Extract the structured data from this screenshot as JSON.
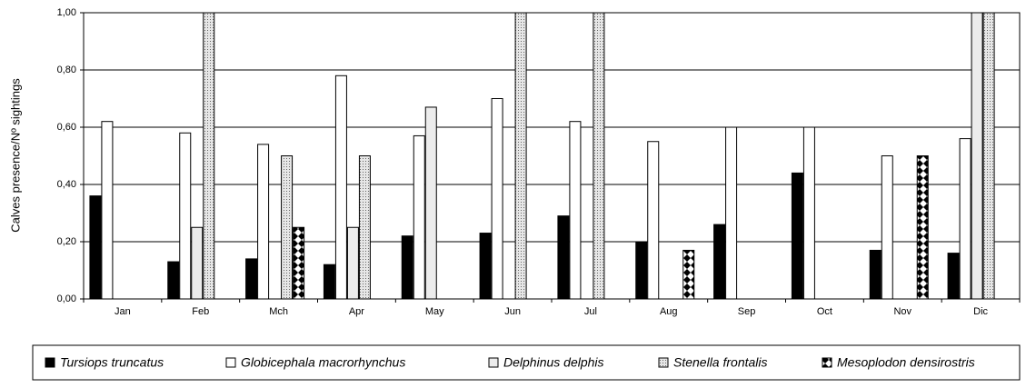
{
  "chart_data": {
    "type": "bar",
    "y_label": "Calves presence/Nº sightings",
    "categories": [
      "Jan",
      "Feb",
      "Mch",
      "Apr",
      "May",
      "Jun",
      "Jul",
      "Aug",
      "Sep",
      "Oct",
      "Nov",
      "Dic"
    ],
    "series": [
      {
        "name": "Tursiops truncatus",
        "color": "#000000",
        "pattern": "solid",
        "values": [
          0.36,
          0.13,
          0.14,
          0.12,
          0.22,
          0.23,
          0.29,
          0.2,
          0.26,
          0.44,
          0.17,
          0.16
        ]
      },
      {
        "name": "Globicephala macrorhynchus",
        "color": "#ffffff",
        "pattern": "solid",
        "values": [
          0.62,
          0.58,
          0.54,
          0.78,
          0.57,
          0.7,
          0.62,
          0.55,
          0.6,
          0.6,
          0.5,
          0.56
        ]
      },
      {
        "name": "Delphinus delphis",
        "color": "#ececec",
        "pattern": "solid",
        "values": [
          null,
          0.25,
          null,
          0.25,
          0.67,
          null,
          null,
          null,
          null,
          null,
          null,
          1.0
        ]
      },
      {
        "name": "Stenella frontalis",
        "color": "#d0d0d0",
        "pattern": "dots",
        "values": [
          null,
          1.0,
          0.5,
          0.5,
          null,
          1.0,
          1.0,
          null,
          null,
          null,
          null,
          1.0
        ]
      },
      {
        "name": "Mesoplodon densirostris",
        "color": "#000000",
        "pattern": "diamonds",
        "values": [
          null,
          null,
          0.25,
          null,
          null,
          null,
          null,
          0.17,
          null,
          null,
          0.5,
          null
        ]
      }
    ],
    "ylim": [
      0,
      1
    ],
    "yticks": [
      {
        "value": 0,
        "label": "0,00"
      },
      {
        "value": 0.2,
        "label": "0,20"
      },
      {
        "value": 0.4,
        "label": "0,40"
      },
      {
        "value": 0.6,
        "label": "0,60"
      },
      {
        "value": 0.8,
        "label": "0,80"
      },
      {
        "value": 1,
        "label": "1,00"
      }
    ],
    "grid": true
  }
}
